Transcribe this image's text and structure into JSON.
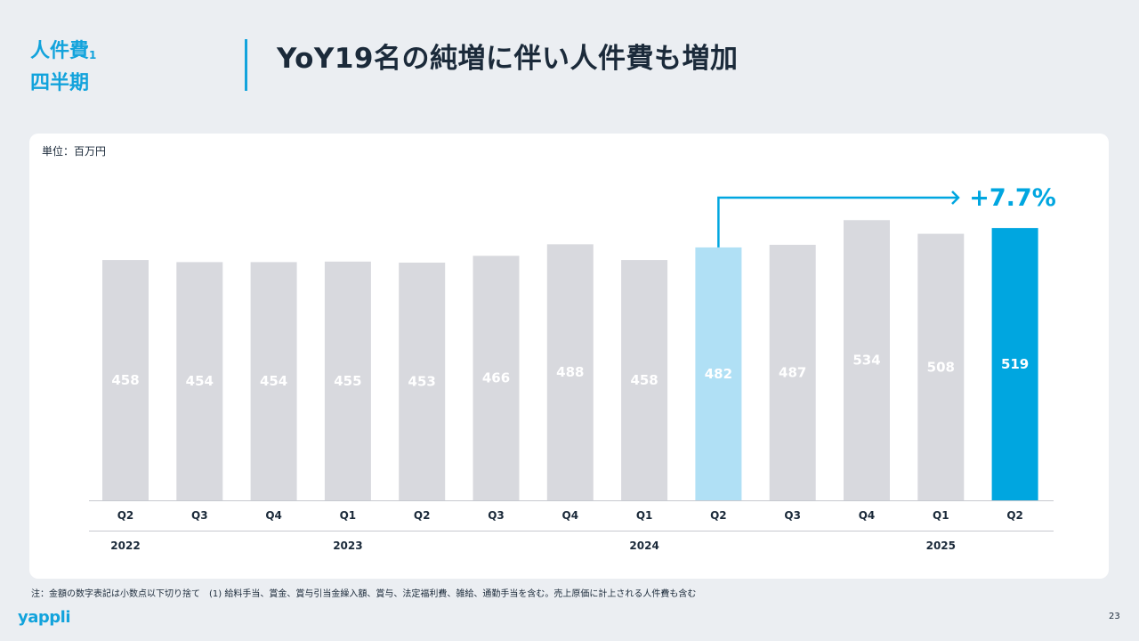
{
  "section": {
    "line1": "人件費",
    "sup": "1",
    "line2": "四半期"
  },
  "headline": "YoY19名の純増に伴い人件費も増加",
  "unit_label": "単位：百万円",
  "footnote": "注：金額の数字表記は小数点以下切り捨て　(1) 給料手当、賞金、賞与引当金繰入額、賞与、法定福利費、雑給、通勤手当を含む。売上原価に計上される人件費も含む",
  "logo": "yappli",
  "page_number": "23",
  "colors": {
    "accent": "#00a6e0",
    "highlight_light": "#b0e0f5",
    "bar_gray": "#d8d9de",
    "label_white": "#ffffff"
  },
  "chart_data": {
    "type": "bar",
    "categories": [
      "Q2",
      "Q3",
      "Q4",
      "Q1",
      "Q2",
      "Q3",
      "Q4",
      "Q1",
      "Q2",
      "Q3",
      "Q4",
      "Q1",
      "Q2"
    ],
    "years": [
      {
        "label": "2022",
        "quarter_index": 0
      },
      {
        "label": "2023",
        "quarter_index": 3
      },
      {
        "label": "2024",
        "quarter_index": 7
      },
      {
        "label": "2025",
        "quarter_index": 11
      }
    ],
    "values": [
      458,
      454,
      454,
      455,
      453,
      466,
      488,
      458,
      482,
      487,
      534,
      508,
      519
    ],
    "highlight_compare_index": 8,
    "highlight_current_index": 12,
    "growth_label": "+7.7%"
  }
}
